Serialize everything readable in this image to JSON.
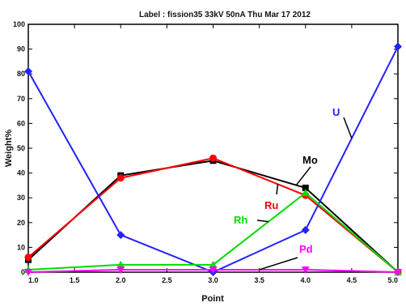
{
  "chart_data": {
    "type": "line",
    "title": "Label : fission35 33kV 50nA Thu Mar 17 2012",
    "xlabel": "Point",
    "ylabel": "Weight%",
    "xlim": [
      1.0,
      5.0
    ],
    "ylim": [
      0,
      100
    ],
    "x_ticks": [
      "1.0",
      "1.5",
      "2.0",
      "2.5",
      "3.0",
      "3.5",
      "4.0",
      "4.5",
      "5.0"
    ],
    "y_ticks": [
      "0",
      "10",
      "20",
      "30",
      "40",
      "50",
      "60",
      "70",
      "80",
      "90",
      "100"
    ],
    "x": [
      1,
      2,
      3,
      4,
      5
    ],
    "series": [
      {
        "name": "Mo",
        "color": "#000000",
        "marker": "square",
        "values": [
          5,
          39,
          45,
          34,
          0
        ]
      },
      {
        "name": "Ru",
        "color": "#ff0000",
        "marker": "circle",
        "values": [
          6,
          38,
          46,
          31,
          0
        ]
      },
      {
        "name": "U",
        "color": "#2222ff",
        "marker": "diamond",
        "values": [
          81,
          15,
          0,
          17,
          91
        ]
      },
      {
        "name": "Rh",
        "color": "#00dd00",
        "marker": "triangle",
        "values": [
          1,
          3,
          3,
          32,
          0
        ]
      },
      {
        "name": "Pd",
        "color": "#ff00ff",
        "marker": "triangle-down",
        "values": [
          0,
          1,
          1,
          1,
          0
        ]
      }
    ],
    "annotations": [
      {
        "text": "Mo",
        "series": "Mo",
        "color": "#000000"
      },
      {
        "text": "Ru",
        "series": "Ru",
        "color": "#ff0000"
      },
      {
        "text": "U",
        "series": "U",
        "color": "#2222ff"
      },
      {
        "text": "Rh",
        "series": "Rh",
        "color": "#00dd00"
      },
      {
        "text": "Pd",
        "series": "Pd",
        "color": "#ff00ff"
      }
    ],
    "grid": false,
    "legend": "none"
  }
}
